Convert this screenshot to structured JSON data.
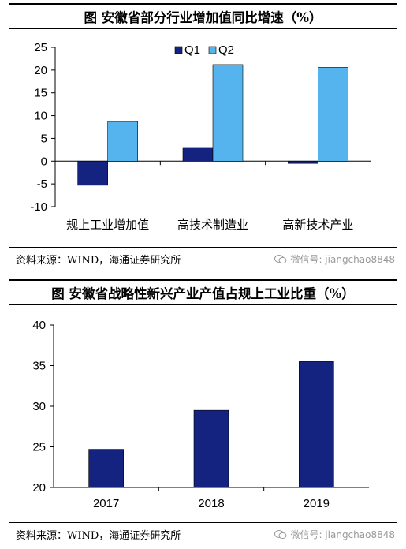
{
  "panel1": {
    "title": "图  安徽省部分行业增加值同比增速（%）",
    "source": "资料来源：WIND，海通证券研究所",
    "watermark": "微信号: jiangchao8848"
  },
  "panel2": {
    "title": "图  安徽省战略性新兴产业产值占规上工业比重（%）",
    "source": "资料来源：WIND，海通证券研究所",
    "watermark": "微信号: jiangchao8848"
  },
  "colors": {
    "q1": "#14237f",
    "q2": "#55b4ee",
    "bar": "#14237f"
  },
  "chart_data": [
    {
      "type": "bar",
      "categories": [
        "规上工业增加值",
        "高技术制造业",
        "高新技术产业"
      ],
      "series": [
        {
          "name": "Q1",
          "values": [
            -5.3,
            3.0,
            -0.5
          ]
        },
        {
          "name": "Q2",
          "values": [
            8.7,
            21.2,
            20.6
          ]
        }
      ],
      "ylim": [
        -10,
        25
      ],
      "yticks": [
        "-10",
        "-5",
        "0",
        "5",
        "10",
        "15",
        "20",
        "25"
      ],
      "legend": "top-center",
      "grid": false
    },
    {
      "type": "bar",
      "categories": [
        "2017",
        "2018",
        "2019"
      ],
      "values": [
        24.7,
        29.5,
        35.5
      ],
      "ylim": [
        20,
        40
      ],
      "yticks": [
        "20",
        "25",
        "30",
        "35",
        "40"
      ],
      "grid": false
    }
  ]
}
